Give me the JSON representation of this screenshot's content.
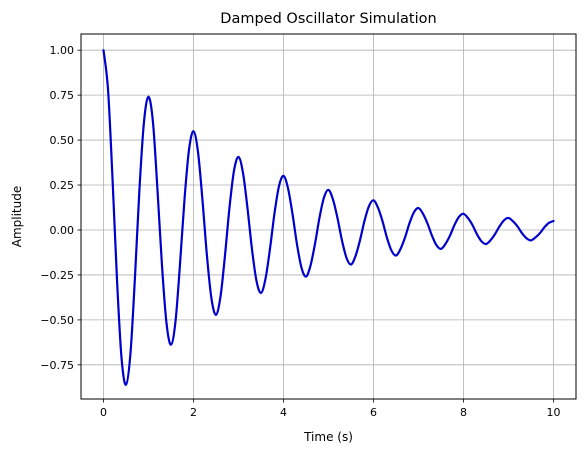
{
  "chart_data": {
    "type": "line",
    "title": "Damped Oscillator Simulation",
    "xlabel": "Time (s)",
    "ylabel": "Amplitude",
    "xlim": [
      -0.5,
      10.5
    ],
    "ylim": [
      -0.94,
      1.09
    ],
    "xticks": [
      0,
      2,
      4,
      6,
      8,
      10
    ],
    "xtick_labels": [
      "0",
      "2",
      "4",
      "6",
      "8",
      "10"
    ],
    "yticks": [
      -0.75,
      -0.5,
      -0.25,
      0.0,
      0.25,
      0.5,
      0.75,
      1.0
    ],
    "ytick_labels": [
      "−0.75",
      "−0.50",
      "−0.25",
      "0.00",
      "0.25",
      "0.50",
      "0.75",
      "1.00"
    ],
    "grid": true,
    "line_color": "#0000cc",
    "grid_color": "#b0b0b0",
    "series": [
      {
        "x": [
          0,
          0.1,
          0.2,
          0.3,
          0.4,
          0.5,
          0.6,
          0.7,
          0.8,
          0.9,
          1.0,
          1.1,
          1.2,
          1.3,
          1.4,
          1.5,
          1.6,
          1.7,
          1.8,
          1.9,
          2.0,
          2.1,
          2.2,
          2.3,
          2.4,
          2.5,
          2.6,
          2.7,
          2.8,
          2.9,
          3.0,
          3.1,
          3.2,
          3.3,
          3.4,
          3.5,
          3.6,
          3.7,
          3.8,
          3.9,
          4.0,
          4.1,
          4.2,
          4.3,
          4.4,
          4.5,
          4.6,
          4.7,
          4.8,
          4.9,
          5.0,
          5.1,
          5.2,
          5.3,
          5.4,
          5.5,
          5.6,
          5.7,
          5.8,
          5.9,
          6.0,
          6.1,
          6.2,
          6.3,
          6.4,
          6.5,
          6.6,
          6.7,
          6.8,
          6.9,
          7.0,
          7.1,
          7.2,
          7.3,
          7.4,
          7.5,
          7.6,
          7.7,
          7.8,
          7.9,
          8.0,
          8.1,
          8.2,
          8.3,
          8.4,
          8.5,
          8.6,
          8.7,
          8.8,
          8.9,
          9.0,
          9.1,
          9.2,
          9.3,
          9.4,
          9.5,
          9.6,
          9.7,
          9.8,
          9.9,
          10.0
        ],
        "y": [
          1.0,
          0.783,
          0.287,
          -0.276,
          -0.71,
          -0.861,
          -0.684,
          -0.259,
          0.232,
          0.602,
          0.741,
          0.597,
          0.221,
          -0.199,
          -0.518,
          -0.638,
          -0.508,
          -0.19,
          0.17,
          0.446,
          0.549,
          0.434,
          0.164,
          -0.147,
          -0.383,
          -0.472,
          -0.37,
          -0.141,
          0.126,
          0.33,
          0.406,
          0.317,
          0.121,
          -0.108,
          -0.283,
          -0.35,
          -0.271,
          -0.104,
          0.093,
          0.244,
          0.301,
          0.232,
          0.089,
          -0.08,
          -0.21,
          -0.259,
          -0.198,
          -0.077,
          0.069,
          0.181,
          0.223,
          0.169,
          0.066,
          -0.059,
          -0.155,
          -0.192,
          -0.145,
          -0.057,
          0.051,
          0.133,
          0.165,
          0.124,
          0.049,
          -0.044,
          -0.115,
          -0.142,
          -0.106,
          -0.042,
          0.038,
          0.099,
          0.122,
          0.09,
          0.036,
          -0.032,
          -0.085,
          -0.105,
          -0.077,
          -0.031,
          0.028,
          0.073,
          0.09,
          0.066,
          0.027,
          -0.024,
          -0.063,
          -0.078,
          -0.057,
          -0.023,
          0.02,
          0.054,
          0.067,
          0.048,
          0.02,
          -0.018,
          -0.046,
          -0.058,
          -0.041,
          -0.017,
          0.016,
          0.04,
          0.05
        ]
      }
    ]
  }
}
